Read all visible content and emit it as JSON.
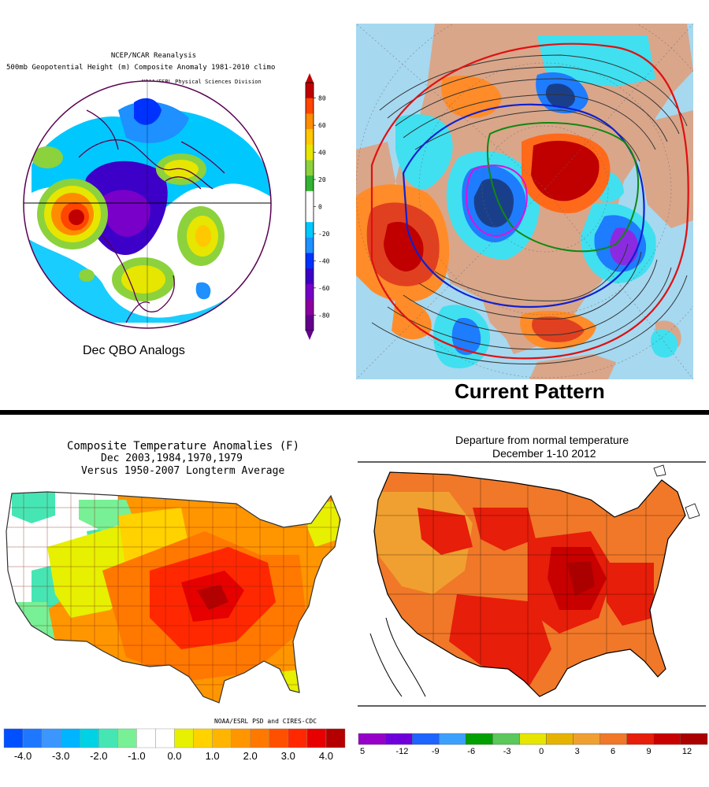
{
  "panels": {
    "top_left": {
      "header_lines": [
        "NCEP/NCAR Reanalysis",
        "500mb Geopotential Height (m) Composite Anomaly 1981-2010 climo",
        "NOAA/ESRL Physical Sciences Division"
      ],
      "caption": "Dec QBO Analogs",
      "colorbar_ticks": [
        "80",
        "60",
        "40",
        "20",
        "0",
        "-20",
        "-40",
        "-60",
        "-80"
      ],
      "colorbar_colors": [
        "#c00000",
        "#ff4500",
        "#ff8c00",
        "#ffc800",
        "#e6e600",
        "#8cd23c",
        "#32b432",
        "#ffffff",
        "#ffffff",
        "#00c8ff",
        "#1e90ff",
        "#0032ff",
        "#3c00c8",
        "#7800c8",
        "#8c00a0",
        "#64008c"
      ]
    },
    "top_right": {
      "caption": "Current Pattern"
    },
    "bottom_left": {
      "title_lines": [
        "Composite Temperature Anomalies (F)",
        "Dec   2003,1984,1970,1979",
        "Versus 1950-2007 Longterm Average"
      ],
      "credit": "NOAA/ESRL PSD and CIRES-CDC",
      "scale_ticks": [
        "-4.0",
        "-3.0",
        "-2.0",
        "-1.0",
        "0.0",
        "1.0",
        "2.0",
        "3.0",
        "4.0"
      ],
      "scale_colors": [
        "#0050ff",
        "#1e78ff",
        "#3c96ff",
        "#00b4ff",
        "#00d2e6",
        "#46e6b4",
        "#78f096",
        "#ffffff",
        "#ffffff",
        "#e6f000",
        "#ffd200",
        "#ffb400",
        "#ff9600",
        "#ff7800",
        "#ff5000",
        "#ff2800",
        "#e60000",
        "#b40000"
      ]
    },
    "bottom_right": {
      "title_lines": [
        "Departure from normal temperature",
        "December 1-10 2012"
      ],
      "scale_ticks": [
        "5",
        "-12",
        "-9",
        "-6",
        "-3",
        "0",
        "3",
        "6",
        "9",
        "12"
      ],
      "scale_colors": [
        "#9600c8",
        "#6e00dc",
        "#1e64ff",
        "#3ca0ff",
        "#00a000",
        "#5ac85a",
        "#e6e600",
        "#e6b400",
        "#f0a030",
        "#f07828",
        "#e61e0a",
        "#c80000",
        "#aa0000"
      ]
    }
  }
}
